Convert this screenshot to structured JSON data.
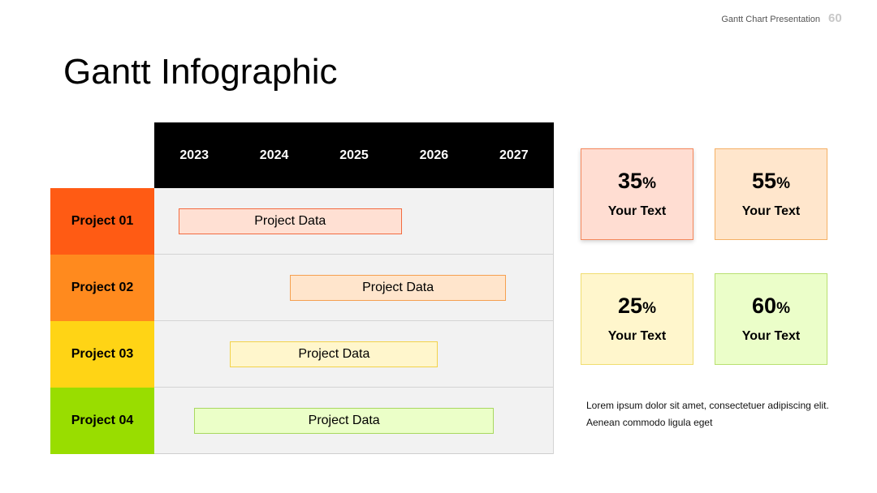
{
  "header": {
    "label": "Gantt Chart Presentation",
    "page_number": "60"
  },
  "title": "Gantt Infographic",
  "chart_data": {
    "type": "gantt",
    "title": "Gantt Infographic",
    "x_axis": {
      "type": "time",
      "ticks": [
        "2023",
        "2024",
        "2025",
        "2026",
        "2027"
      ],
      "range": [
        "2022.5",
        "2027.5"
      ]
    },
    "rows": [
      {
        "label": "Project 01",
        "bar_label": "Project Data",
        "start": 2022.8,
        "end": 2025.6,
        "row_color": "#ff5b14",
        "bar_fill": "#ffe0d3",
        "bar_border": "#f26b40"
      },
      {
        "label": "Project 02",
        "bar_label": "Project Data",
        "start": 2024.2,
        "end": 2026.9,
        "row_color": "#ff8a1e",
        "bar_fill": "#ffe5cc",
        "bar_border": "#f5a050"
      },
      {
        "label": "Project 03",
        "bar_label": "Project Data",
        "start": 2023.45,
        "end": 2026.05,
        "row_color": "#ffd415",
        "bar_fill": "#fff6cc",
        "bar_border": "#f2d24a"
      },
      {
        "label": "Project 04",
        "bar_label": "Project Data",
        "start": 2023.0,
        "end": 2026.75,
        "row_color": "#99dd00",
        "bar_fill": "#ebffc8",
        "bar_border": "#a8d860"
      }
    ]
  },
  "stats": [
    {
      "value": "35",
      "unit": "%",
      "label": "Your Text",
      "bg": "#ffddd2",
      "border": "#f5875c",
      "shadow": true
    },
    {
      "value": "55",
      "unit": "%",
      "label": "Your Text",
      "bg": "#ffe6cc",
      "border": "#f5b065",
      "shadow": false
    },
    {
      "value": "25",
      "unit": "%",
      "label": "Your Text",
      "bg": "#fff6cc",
      "border": "#f0dd70",
      "shadow": false
    },
    {
      "value": "60",
      "unit": "%",
      "label": "Your Text",
      "bg": "#ebfec9",
      "border": "#b9e070",
      "shadow": false
    }
  ],
  "description": "Lorem ipsum dolor sit amet, consectetuer adipiscing elit. Aenean commodo ligula eget"
}
